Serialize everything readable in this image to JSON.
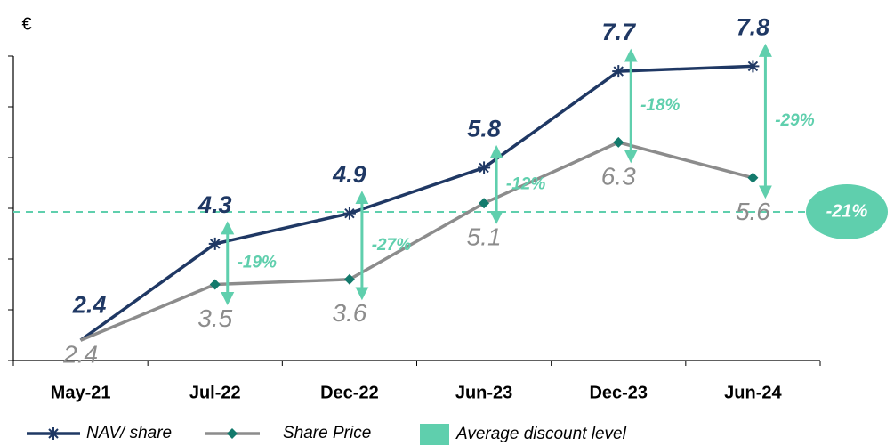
{
  "chart_data": {
    "type": "line",
    "unit_label": "€",
    "categories": [
      "May-21",
      "Jul-22",
      "Dec-22",
      "Jun-23",
      "Dec-23",
      "Jun-24"
    ],
    "series": [
      {
        "name": "NAV/ share",
        "color": "#1f3864",
        "values": [
          2.4,
          4.3,
          4.9,
          5.8,
          7.7,
          7.8
        ]
      },
      {
        "name": "Share Price",
        "color": "#8c8c8c",
        "marker_color": "#137a6c",
        "values": [
          2.4,
          3.5,
          3.6,
          5.1,
          6.3,
          5.6
        ]
      }
    ],
    "discount_labels": [
      null,
      "-19%",
      "-27%",
      "-12%",
      "-18%",
      "-29%"
    ],
    "reference_line": {
      "name": "Average discount level",
      "value": 4.93,
      "label": "-21%",
      "color": "#5fcfad"
    },
    "ylim": [
      2,
      8
    ],
    "yticks": [
      2,
      3,
      4,
      5,
      6,
      7,
      8
    ]
  }
}
